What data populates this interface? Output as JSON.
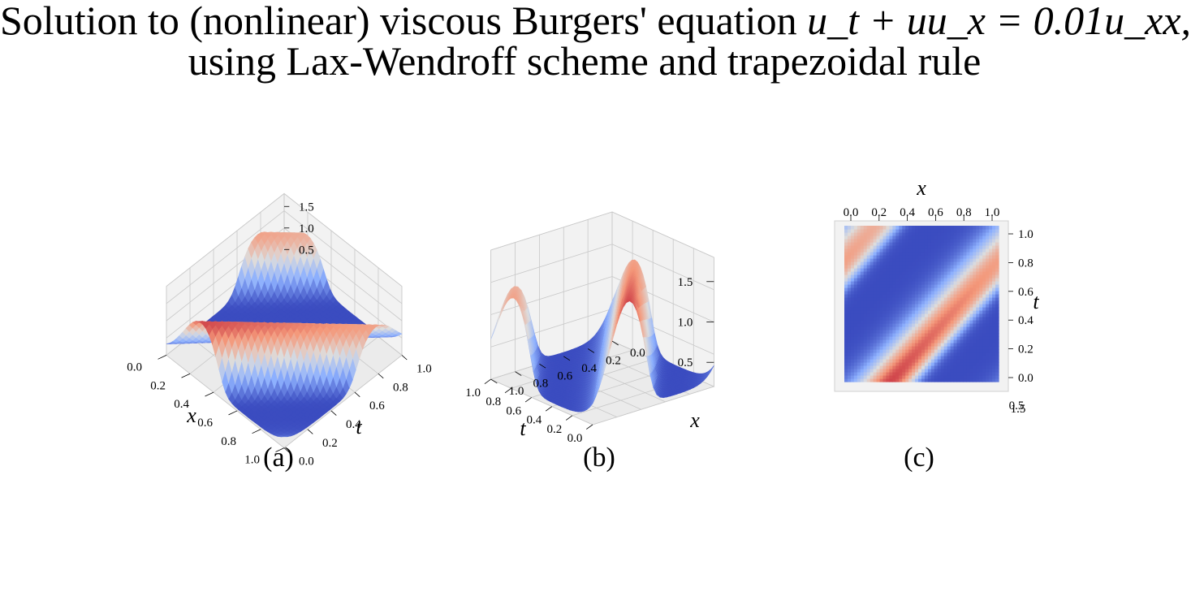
{
  "title": {
    "line1_prefix": "Solution to (nonlinear) viscous Burgers' equation ",
    "line1_math": "u_t + uu_x = 0.01u_xx,",
    "line2": "using Lax-Wendroff scheme and trapezoidal rule"
  },
  "chart_data": [
    {
      "type": "surface",
      "panel_label": "(a)",
      "xlabel": "x",
      "ylabel": "t",
      "zlabel": "",
      "x_ticks": [
        "0.0",
        "0.2",
        "0.4",
        "0.6",
        "0.8",
        "1.0"
      ],
      "t_ticks": [
        "0.0",
        "0.2",
        "0.4",
        "0.6",
        "0.8",
        "1.0"
      ],
      "z_ticks": [
        "0.5",
        "1.0",
        "1.5"
      ],
      "xlim": [
        0,
        1
      ],
      "tlim": [
        0,
        1
      ],
      "zlim": [
        0.2,
        1.8
      ],
      "colormap": "coolwarm",
      "view": "elevated, looking down the x axis",
      "grid": true
    },
    {
      "type": "surface",
      "panel_label": "(b)",
      "xlabel": "x",
      "ylabel": "t",
      "zlabel": "",
      "x_ticks": [
        "0.0",
        "0.2",
        "0.4",
        "0.6",
        "0.8",
        "1.0"
      ],
      "t_ticks": [
        "0.0",
        "0.2",
        "0.4",
        "0.6",
        "0.8",
        "1.0"
      ],
      "z_ticks": [
        "0.5",
        "1.0",
        "1.5"
      ],
      "xlim": [
        0,
        1
      ],
      "tlim": [
        0,
        1
      ],
      "zlim": [
        0.2,
        1.8
      ],
      "colormap": "coolwarm",
      "view": "side view along t",
      "grid": true
    },
    {
      "type": "heatmap",
      "panel_label": "(c)",
      "xlabel": "x",
      "ylabel": "t",
      "x_ticks": [
        "0.0",
        "0.2",
        "0.4",
        "0.6",
        "0.8",
        "1.0"
      ],
      "t_ticks": [
        "0.0",
        "0.2",
        "0.4",
        "0.6",
        "0.8",
        "1.0"
      ],
      "z_ticks_visible": [
        "0.5",
        "1.5"
      ],
      "xlim": [
        0,
        1
      ],
      "tlim": [
        0,
        1
      ],
      "colormap": "coolwarm",
      "view": "top-down"
    }
  ],
  "colors": {
    "cold": "#3b4cc0",
    "neutral": "#dddddd",
    "hot": "#b40426",
    "pane": "#f2f2f2",
    "grid": "#c8c8c8"
  }
}
